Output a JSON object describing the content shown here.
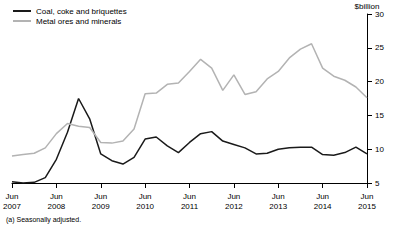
{
  "chart_data": {
    "type": "line",
    "ylabel": "$billion",
    "note": "(a) Seasonally adjusted.",
    "categories": [
      "Jun\n2007",
      null,
      null,
      null,
      "Jun\n2008",
      null,
      null,
      null,
      "Jun\n2009",
      null,
      null,
      null,
      "Jun\n2010",
      null,
      null,
      null,
      "Jun\n2011",
      null,
      null,
      null,
      "Jun\n2012",
      null,
      null,
      null,
      "Jun\n2013",
      null,
      null,
      null,
      "Jun\n2014",
      null,
      null,
      null,
      "Jun\n2015"
    ],
    "series": [
      {
        "name": "Coal, coke and briquettes",
        "color": "#1a1a1a",
        "values": [
          5.2,
          5.0,
          5.1,
          5.8,
          8.5,
          12.5,
          17.5,
          14.5,
          9.3,
          8.3,
          7.8,
          8.8,
          11.5,
          11.8,
          10.5,
          9.5,
          11.0,
          12.3,
          12.6,
          11.2,
          10.7,
          10.2,
          9.3,
          9.4,
          10.0,
          10.2,
          10.3,
          10.3,
          9.2,
          9.1,
          9.5,
          10.3,
          9.3
        ]
      },
      {
        "name": "Metal ores and minerals",
        "color": "#b3b3b3",
        "values": [
          9.0,
          9.2,
          9.4,
          10.2,
          12.3,
          13.8,
          13.4,
          13.2,
          11.0,
          10.9,
          11.2,
          13.0,
          18.2,
          18.3,
          19.6,
          19.8,
          21.5,
          23.3,
          22.0,
          18.7,
          21.0,
          18.1,
          18.5,
          20.4,
          21.5,
          23.5,
          24.8,
          25.6,
          22.0,
          20.8,
          20.2,
          19.2,
          17.6
        ]
      }
    ],
    "ylim": [
      5,
      30
    ],
    "yticks": [
      5,
      10,
      15,
      20,
      25,
      30
    ],
    "grid": false,
    "legend": "top-left"
  }
}
